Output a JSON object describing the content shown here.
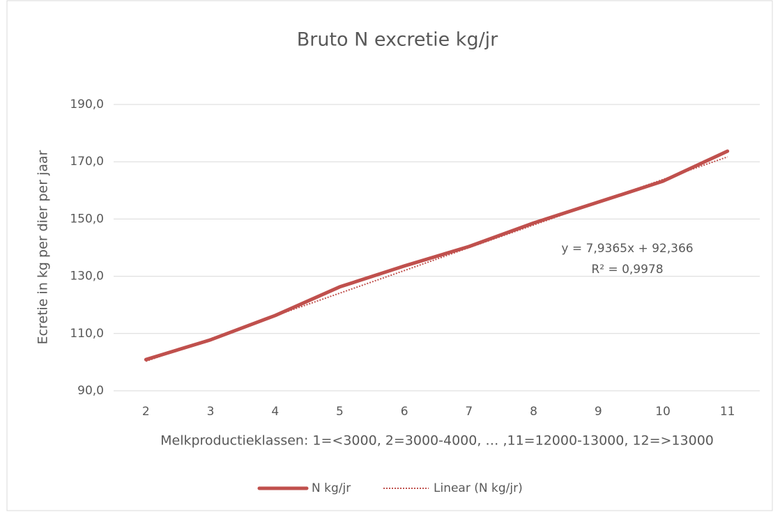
{
  "chart_data": {
    "type": "line",
    "title": "Bruto N excretie kg/jr",
    "x_label": "Melkproductieklassen: 1=<3000, 2=3000-4000, … ,11=12000-13000, 12=>13000",
    "y_label": "Ecretie in kg per dier per jaar",
    "categories": [
      "2",
      "3",
      "4",
      "5",
      "6",
      "7",
      "8",
      "9",
      "10",
      "11"
    ],
    "series": [
      {
        "name": "N kg/jr",
        "color": "#c0504d",
        "style": "solid",
        "values": [
          100.9,
          107.8,
          116.3,
          126.3,
          133.6,
          140.4,
          148.6,
          155.9,
          163.2,
          173.7
        ]
      },
      {
        "name": "Linear (N kg/jr)",
        "color": "#c0504d",
        "style": "dotted",
        "values": [
          100.3,
          108.2,
          116.2,
          124.1,
          132.0,
          140.0,
          147.9,
          155.9,
          163.8,
          171.7
        ]
      }
    ],
    "annotations": [
      "y = 7,9365x + 92,366",
      "R² = 0,9978"
    ],
    "ylim": [
      90,
      190
    ],
    "yticks": [
      {
        "value": 90,
        "label": "90,0"
      },
      {
        "value": 110,
        "label": "110,0"
      },
      {
        "value": 130,
        "label": "130,0"
      },
      {
        "value": 150,
        "label": "150,0"
      },
      {
        "value": 170,
        "label": "170,0"
      },
      {
        "value": 190,
        "label": "190,0"
      }
    ],
    "grid": true,
    "legend": "bottom"
  }
}
